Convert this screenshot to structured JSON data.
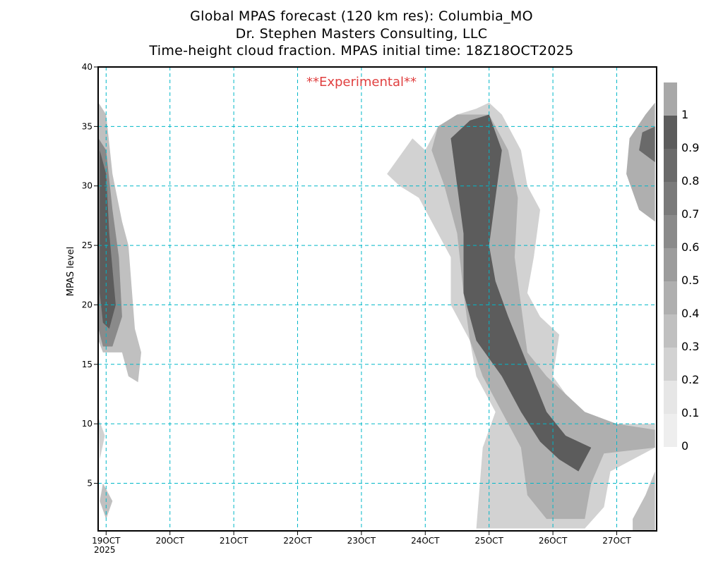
{
  "title_lines": [
    "Global MPAS forecast (120 km res): Columbia_MO",
    "Dr. Stephen Masters Consulting, LLC",
    "Time-height cloud fraction.   MPAS initial time: 18Z18OCT2025"
  ],
  "watermark": "**Experimental**",
  "colors": {
    "grid": "#00b7c8",
    "watermark": "#e04040",
    "fill_levels": [
      "#e6e6e6",
      "#d2d2d2",
      "#c0c0c0",
      "#afafaf",
      "#9c9c9c",
      "#8a8a8a",
      "#7a7a7a",
      "#6a6a6a",
      "#5c5c5c",
      "#a8a8a8"
    ]
  },
  "chart_data": {
    "type": "contour-filled",
    "title": "Time-height cloud fraction.",
    "xlabel": "",
    "ylabel": "MPAS level",
    "x_tick_labels": [
      "19OCT",
      "20OCT",
      "21OCT",
      "22OCT",
      "23OCT",
      "24OCT",
      "25OCT",
      "26OCT",
      "27OCT"
    ],
    "x_tick_days": [
      19,
      20,
      21,
      22,
      23,
      24,
      25,
      26,
      27
    ],
    "x_secondary_label": "2025",
    "xlim": [
      18.875,
      27.625
    ],
    "ylim": [
      1,
      40
    ],
    "y_ticks": [
      5,
      10,
      15,
      20,
      25,
      30,
      35,
      40
    ],
    "grid": true,
    "colorbar": {
      "levels": [
        0,
        0.1,
        0.2,
        0.3,
        0.4,
        0.5,
        0.6,
        0.7,
        0.8,
        0.9,
        1
      ],
      "labels": [
        "0",
        "0.1",
        "0.2",
        "0.3",
        "0.4",
        "0.5",
        "0.6",
        "0.7",
        "0.8",
        "0.9",
        "1"
      ]
    },
    "cloud_regions": [
      {
        "name": "early-column",
        "fraction": 0.2,
        "points": [
          [
            18.88,
            37
          ],
          [
            19.0,
            36
          ],
          [
            19.1,
            31
          ],
          [
            19.25,
            27
          ],
          [
            19.35,
            25
          ],
          [
            19.45,
            18
          ],
          [
            19.55,
            16
          ],
          [
            19.5,
            13.5
          ],
          [
            19.35,
            14
          ],
          [
            19.25,
            16
          ],
          [
            18.95,
            16
          ],
          [
            18.88,
            17
          ]
        ]
      },
      {
        "name": "early-column",
        "fraction": 0.5,
        "points": [
          [
            18.88,
            34
          ],
          [
            19.0,
            33
          ],
          [
            19.1,
            28
          ],
          [
            19.2,
            24
          ],
          [
            19.25,
            19
          ],
          [
            19.1,
            16.5
          ],
          [
            18.95,
            16.5
          ],
          [
            18.88,
            18
          ]
        ]
      },
      {
        "name": "early-column",
        "fraction": 0.85,
        "points": [
          [
            18.9,
            33
          ],
          [
            19.0,
            31
          ],
          [
            19.05,
            26
          ],
          [
            19.15,
            20
          ],
          [
            19.05,
            18
          ],
          [
            18.95,
            18.5
          ],
          [
            18.9,
            21
          ]
        ]
      },
      {
        "name": "early-low",
        "fraction": 0.15,
        "points": [
          [
            18.88,
            10.5
          ],
          [
            18.98,
            9
          ],
          [
            18.9,
            7
          ]
        ]
      },
      {
        "name": "early-low",
        "fraction": 0.2,
        "points": [
          [
            18.95,
            5
          ],
          [
            19.1,
            3.5
          ],
          [
            19.0,
            2
          ],
          [
            18.9,
            3.5
          ]
        ]
      },
      {
        "name": "late-broad",
        "fraction": 0.12,
        "points": [
          [
            23.4,
            31
          ],
          [
            23.8,
            34
          ],
          [
            24.0,
            33
          ],
          [
            24.2,
            35
          ],
          [
            24.5,
            36
          ],
          [
            24.8,
            36.5
          ],
          [
            25.0,
            37
          ],
          [
            25.2,
            36
          ],
          [
            25.5,
            33
          ],
          [
            25.6,
            30
          ],
          [
            25.8,
            28
          ],
          [
            25.7,
            24
          ],
          [
            25.6,
            21
          ],
          [
            25.8,
            19
          ],
          [
            26.1,
            17.5
          ],
          [
            26.0,
            14
          ],
          [
            26.4,
            11
          ],
          [
            26.8,
            10
          ],
          [
            27.6,
            10
          ],
          [
            27.6,
            8
          ],
          [
            26.9,
            6
          ],
          [
            26.8,
            3
          ],
          [
            26.5,
            1.2
          ],
          [
            24.8,
            1.2
          ],
          [
            24.9,
            8
          ],
          [
            25.1,
            11
          ],
          [
            24.8,
            14
          ],
          [
            24.7,
            17
          ],
          [
            24.4,
            20
          ],
          [
            24.4,
            24
          ],
          [
            24.1,
            27
          ],
          [
            23.9,
            29
          ],
          [
            23.6,
            30
          ]
        ]
      },
      {
        "name": "late-mid",
        "fraction": 0.3,
        "points": [
          [
            24.2,
            35
          ],
          [
            24.5,
            36
          ],
          [
            25.0,
            36
          ],
          [
            25.3,
            33
          ],
          [
            25.45,
            29
          ],
          [
            25.4,
            24
          ],
          [
            25.5,
            20
          ],
          [
            25.6,
            16
          ],
          [
            25.9,
            14
          ],
          [
            26.5,
            11
          ],
          [
            27.0,
            10
          ],
          [
            27.6,
            9.5
          ],
          [
            27.6,
            8
          ],
          [
            26.8,
            7.5
          ],
          [
            26.6,
            5
          ],
          [
            26.5,
            2
          ],
          [
            25.9,
            2
          ],
          [
            25.6,
            4
          ],
          [
            25.5,
            8
          ],
          [
            25.2,
            11
          ],
          [
            24.9,
            14
          ],
          [
            24.7,
            17
          ],
          [
            24.6,
            21
          ],
          [
            24.5,
            26
          ],
          [
            24.3,
            30
          ],
          [
            24.1,
            33
          ]
        ]
      },
      {
        "name": "late-core",
        "fraction": 0.8,
        "points": [
          [
            24.4,
            34
          ],
          [
            24.7,
            35.5
          ],
          [
            25.0,
            36
          ],
          [
            25.2,
            33
          ],
          [
            25.1,
            29
          ],
          [
            25.0,
            25
          ],
          [
            25.1,
            22
          ],
          [
            25.3,
            19
          ],
          [
            25.6,
            15
          ],
          [
            25.9,
            11
          ],
          [
            26.2,
            9
          ],
          [
            26.6,
            8
          ],
          [
            26.4,
            6
          ],
          [
            26.1,
            7
          ],
          [
            25.8,
            8.5
          ],
          [
            25.5,
            11
          ],
          [
            25.2,
            14
          ],
          [
            24.8,
            17
          ],
          [
            24.6,
            21
          ],
          [
            24.6,
            26
          ],
          [
            24.5,
            30
          ]
        ]
      },
      {
        "name": "late-right-top",
        "fraction": 0.3,
        "points": [
          [
            27.6,
            37
          ],
          [
            27.45,
            36
          ],
          [
            27.2,
            34
          ],
          [
            27.15,
            31
          ],
          [
            27.35,
            28
          ],
          [
            27.6,
            27
          ]
        ]
      },
      {
        "name": "late-right-top",
        "fraction": 0.7,
        "points": [
          [
            27.6,
            35
          ],
          [
            27.4,
            34.5
          ],
          [
            27.35,
            33
          ],
          [
            27.6,
            32
          ]
        ]
      },
      {
        "name": "late-right-low",
        "fraction": 0.25,
        "points": [
          [
            27.6,
            6
          ],
          [
            27.45,
            4
          ],
          [
            27.25,
            2
          ],
          [
            27.25,
            1
          ],
          [
            27.6,
            1
          ]
        ]
      }
    ]
  }
}
